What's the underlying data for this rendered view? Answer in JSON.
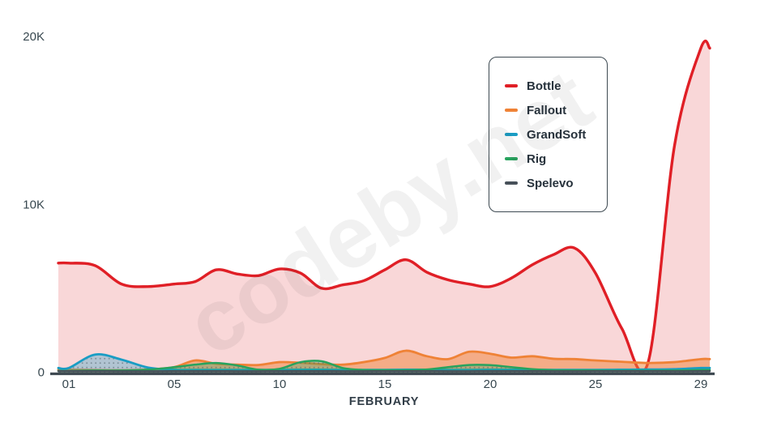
{
  "watermark": "codeby.net",
  "chart_data": {
    "type": "area",
    "title": "",
    "xlabel": "FEBRUARY",
    "ylabel": "",
    "x_unit": "day of February",
    "x": [
      1,
      2,
      3,
      4,
      5,
      6,
      7,
      8,
      9,
      10,
      11,
      12,
      13,
      14,
      15,
      16,
      17,
      18,
      19,
      20,
      21,
      22,
      23,
      24,
      25,
      26,
      27,
      28,
      29
    ],
    "x_axis": {
      "label": "FEBRUARY",
      "tick_labels": [
        "01",
        "05",
        "10",
        "15",
        "20",
        "25",
        "29"
      ],
      "tick_days": [
        1,
        5,
        10,
        15,
        20,
        25,
        29
      ]
    },
    "y_axis": {
      "tick_labels": [
        "0",
        "10K",
        "20K"
      ],
      "tick_values": [
        0,
        10000,
        20000
      ]
    },
    "ylim": [
      0,
      20000
    ],
    "grid": false,
    "legend_position": "top-right",
    "curve": "smooth",
    "series": [
      {
        "name": "Bottle",
        "color": "#e01f26",
        "fill": "solid",
        "fill_opacity": 0.18,
        "line_width": 3.4,
        "values": [
          6500,
          6350,
          5250,
          5100,
          5250,
          5400,
          6100,
          5850,
          5750,
          6150,
          5900,
          5000,
          5200,
          5450,
          6100,
          6700,
          5950,
          5500,
          5250,
          5100,
          5600,
          6400,
          7000,
          7400,
          5900,
          2600,
          600,
          13500,
          19300
        ]
      },
      {
        "name": "Fallout",
        "color": "#ef8236",
        "fill": "solid",
        "fill_opacity": 0.5,
        "line_width": 2.8,
        "values": [
          150,
          130,
          120,
          160,
          300,
          700,
          500,
          450,
          430,
          600,
          560,
          480,
          450,
          600,
          850,
          1280,
          950,
          780,
          1220,
          1100,
          870,
          950,
          800,
          780,
          700,
          620,
          550,
          600,
          780
        ]
      },
      {
        "name": "GrandSoft",
        "color": "#1a9dc4",
        "fill": "pattern-dots",
        "fill_opacity": 0.32,
        "line_width": 2.8,
        "values": [
          250,
          1050,
          750,
          280,
          150,
          140,
          140,
          140,
          140,
          140,
          150,
          150,
          140,
          140,
          140,
          150,
          150,
          140,
          140,
          150,
          150,
          150,
          140,
          140,
          140,
          150,
          160,
          180,
          250
        ]
      },
      {
        "name": "Rig",
        "color": "#27a35e",
        "fill": "pattern-dots",
        "fill_opacity": 0.32,
        "line_width": 2.5,
        "values": [
          80,
          100,
          100,
          150,
          300,
          450,
          550,
          400,
          150,
          200,
          600,
          650,
          250,
          130,
          120,
          120,
          160,
          300,
          430,
          420,
          300,
          180,
          120,
          110,
          100,
          90,
          90,
          100,
          130
        ]
      },
      {
        "name": "Spelevo",
        "color": "#475059",
        "fill": "none",
        "fill_opacity": 0,
        "line_width": 2.5,
        "values": [
          60,
          60,
          55,
          55,
          60,
          60,
          60,
          55,
          55,
          60,
          60,
          60,
          55,
          55,
          60,
          60,
          60,
          55,
          55,
          60,
          60,
          60,
          55,
          55,
          60,
          60,
          60,
          55,
          60
        ]
      }
    ],
    "legend": {
      "items": [
        "Bottle",
        "Fallout",
        "GrandSoft",
        "Rig",
        "Spelevo"
      ]
    }
  },
  "colors": {
    "axis_line": "#3f4a52",
    "tick_text": "#37474f",
    "axis_title_text": "#323e48",
    "legend_border": "#3e4a52",
    "pattern_dot": "#4e5e68"
  }
}
